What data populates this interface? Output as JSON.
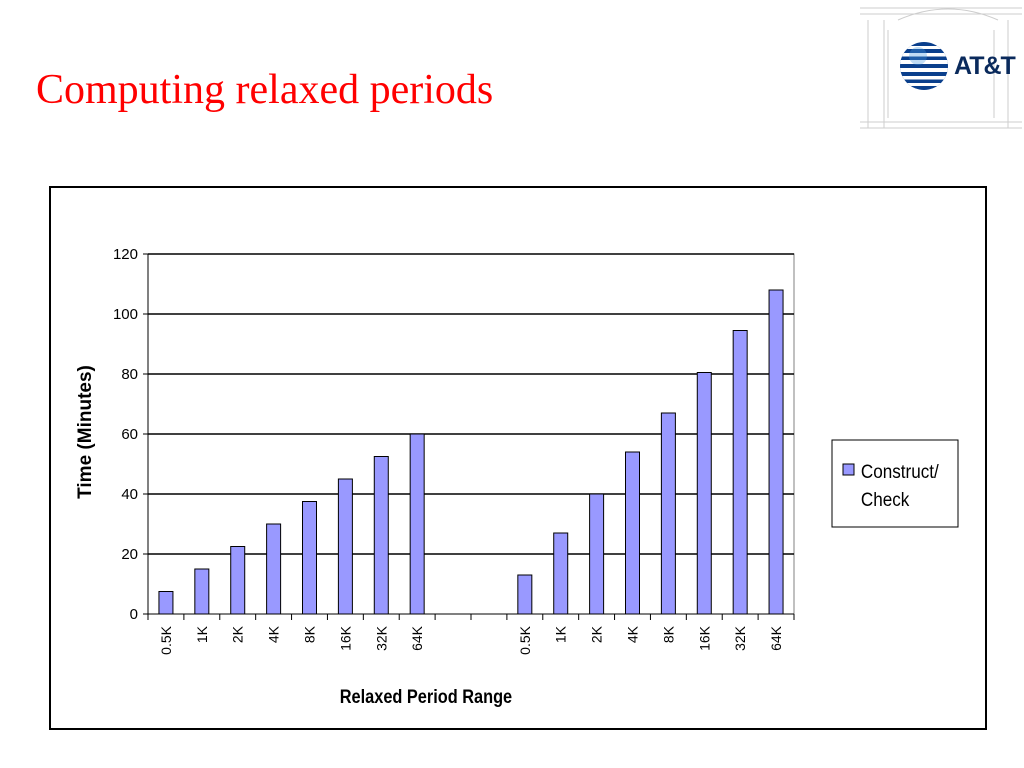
{
  "slide": {
    "title": "Computing relaxed periods"
  },
  "logo": {
    "text": "AT&T",
    "accent": "#1c64b4"
  },
  "chart_data": {
    "type": "bar",
    "categories": [
      "0.5K",
      "1K",
      "2K",
      "4K",
      "8K",
      "16K",
      "32K",
      "64K",
      "",
      "",
      "0.5K",
      "1K",
      "2K",
      "4K",
      "8K",
      "16K",
      "32K",
      "64K"
    ],
    "series": [
      {
        "name": "Construct/ Check",
        "values": [
          7.5,
          15,
          22.5,
          30,
          37.5,
          45,
          52.5,
          60,
          null,
          null,
          13,
          27,
          40,
          54,
          67,
          80.5,
          94.5,
          108
        ],
        "color": "#9999ff"
      }
    ],
    "title": "",
    "xlabel": "Relaxed Period Range",
    "ylabel": "Time  (Minutes)",
    "ylim": [
      0,
      120
    ],
    "yticks": [
      0,
      20,
      40,
      60,
      80,
      100,
      120
    ],
    "grid": true,
    "legend": {
      "placement": "right",
      "lines": [
        "Construct/",
        "Check"
      ]
    }
  }
}
